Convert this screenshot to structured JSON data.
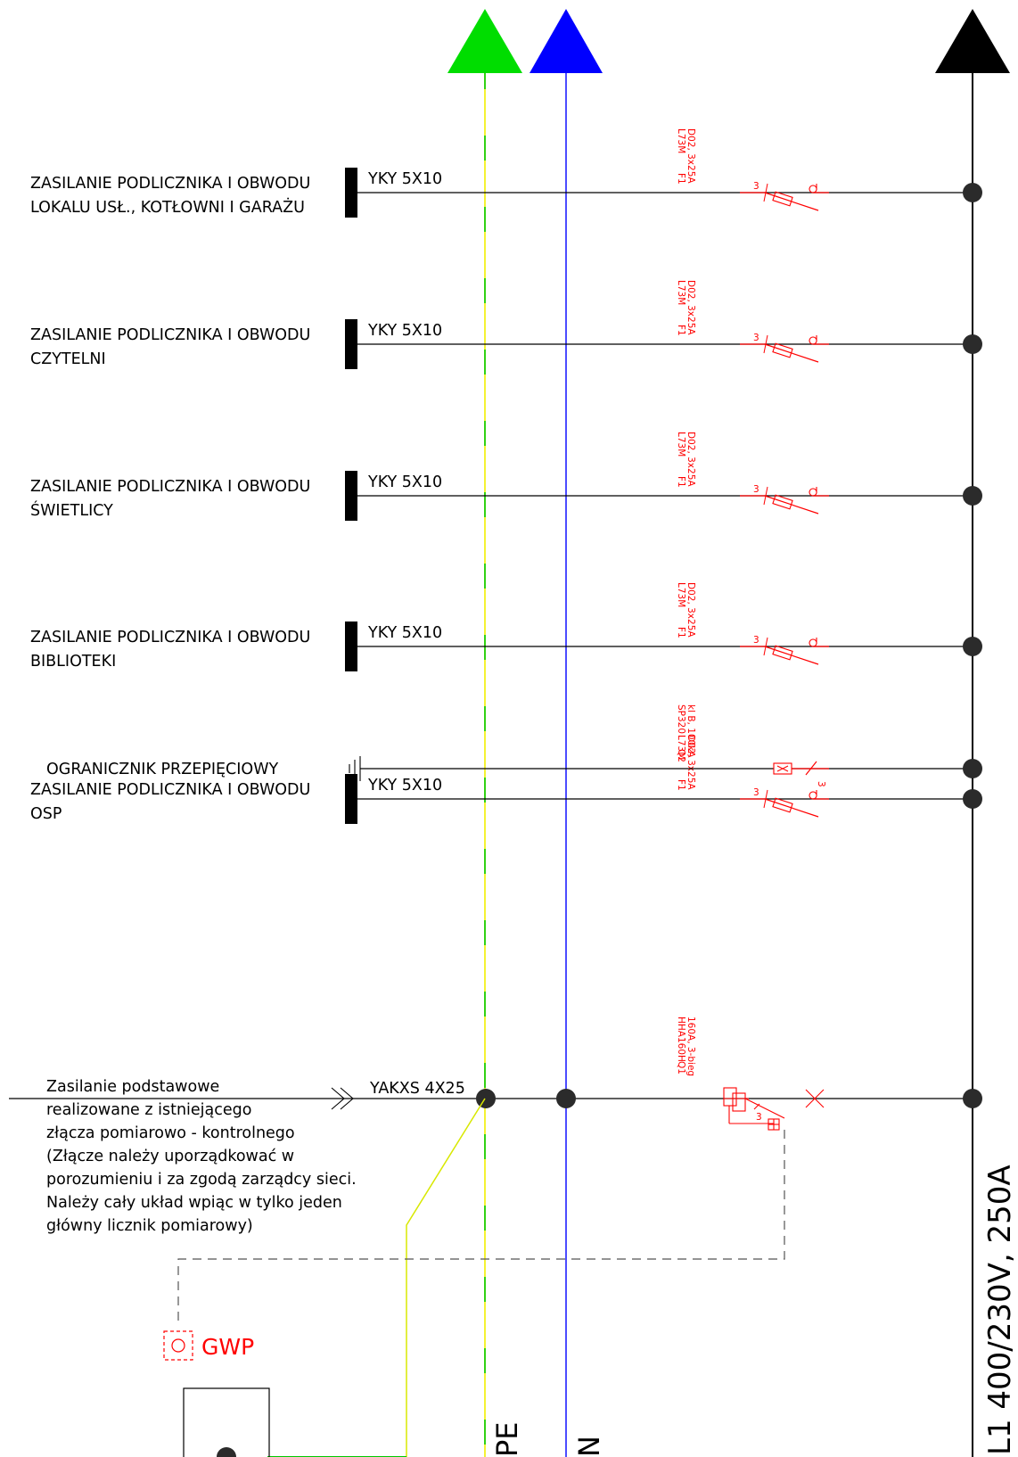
{
  "colors": {
    "pe": "#ffff00",
    "pe_green": "#00cc00",
    "neutral": "#0000ff",
    "phase": "#000000",
    "protection": "#ff0000",
    "control": "#555555"
  },
  "busbars": {
    "pe_label": "PE",
    "n_label": "N",
    "l1_label": "L1 400/230V, 250A"
  },
  "circuits": [
    {
      "name_line1": "ZASILANIE PODLICZNIKA I OBWODU",
      "name_line2": "LOKALU USŁ., KOTŁOWNI I GARAŻU",
      "cable": "YKY 5X10",
      "device_l1": "D02, 3x25A",
      "device_l2": "L73M",
      "device_ref": "F1",
      "poles": "3"
    },
    {
      "name_line1": "ZASILANIE PODLICZNIKA I OBWODU",
      "name_line2": "CZYTELNI",
      "cable": "YKY 5X10",
      "device_l1": "D02, 3x25A",
      "device_l2": "L73M",
      "device_ref": "F1",
      "poles": "3"
    },
    {
      "name_line1": "ZASILANIE PODLICZNIKA I OBWODU",
      "name_line2": "ŚWIETLICY",
      "cable": "YKY 5X10",
      "device_l1": "D02, 3x25A",
      "device_l2": "L73M",
      "device_ref": "F1",
      "poles": "3"
    },
    {
      "name_line1": "ZASILANIE PODLICZNIKA I OBWODU",
      "name_line2": "BIBLIOTEKI",
      "cable": "YKY 5X10",
      "device_l1": "D02, 3x25A",
      "device_l2": "L73M",
      "device_ref": "F1",
      "poles": "3"
    },
    {
      "name_line1": "ZASILANIE PODLICZNIKA I OBWODU",
      "name_line2": "OSP",
      "cable": "YKY 5X10",
      "device_l1": "D02, 3x25A",
      "device_l2": "L73M",
      "device_ref": "F1",
      "poles": "3"
    }
  ],
  "surge": {
    "name": "OGRANICZNIK PRZEPIĘCIOWY",
    "device_l1": "kl B, 100kA",
    "device_l2": "SP320",
    "device_ref": "Q2",
    "poles": "3"
  },
  "supply": {
    "cable": "YAKXS 4X25",
    "note": [
      "Zasilanie podstawowe",
      "realizowane z istniejącego",
      "złącza pomiarowo - kontrolnego",
      "(Złącze należy uporządkować w",
      "porozumieniu i za zgodą zarządcy sieci.",
      "Należy cały układ wpiąc w tylko jeden",
      "główny licznik pomiarowy)"
    ],
    "device_l1": "160A, 3-bieg",
    "device_l2": "HHA160H",
    "device_ref": "Q1",
    "poles": "3"
  },
  "gwp_label": "GWP"
}
